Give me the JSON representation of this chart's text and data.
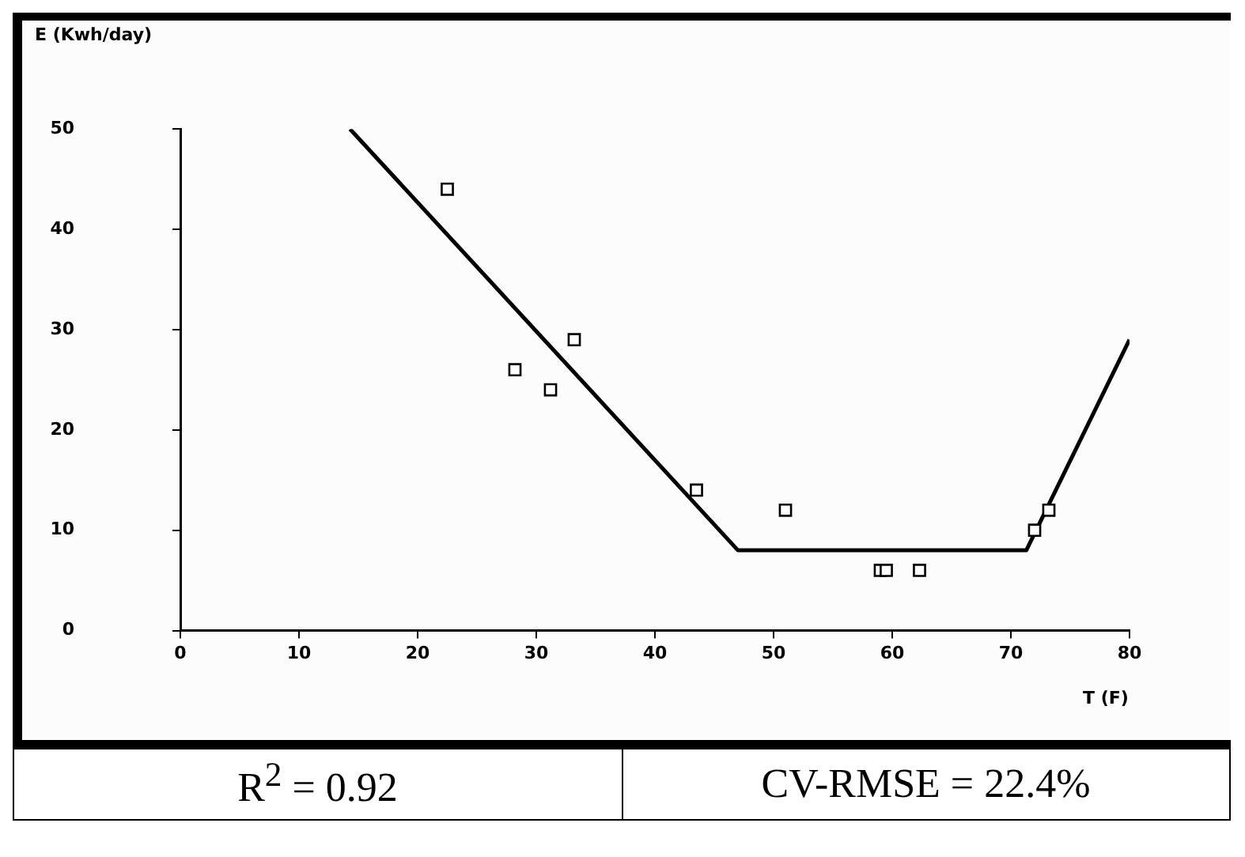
{
  "chart_data": {
    "type": "scatter",
    "xlabel": "T (F)",
    "ylabel": "E (Kwh/day)",
    "xlim": [
      0,
      80
    ],
    "ylim": [
      0,
      50
    ],
    "xticks": [
      0,
      10,
      20,
      30,
      40,
      50,
      60,
      70,
      80
    ],
    "yticks": [
      0,
      10,
      20,
      30,
      40,
      50
    ],
    "grid": false,
    "legend": false,
    "marker": "square",
    "series": [
      {
        "type": "scatter",
        "color": "#000000",
        "x": [
          22.5,
          28.2,
          31.2,
          33.2,
          43.5,
          51,
          59,
          59.5,
          62.3,
          72,
          73.2
        ],
        "values": [
          44,
          26,
          24,
          29,
          14,
          12,
          6,
          6,
          6,
          10,
          12
        ]
      },
      {
        "type": "line",
        "color": "#000000",
        "marker": "none",
        "x": [
          14.3,
          47,
          71.3,
          80
        ],
        "values": [
          50,
          8,
          8,
          29
        ]
      }
    ],
    "annotations": [
      "R$^{2}$ = 0.92",
      "CV-RMSE = 22.4%"
    ]
  }
}
